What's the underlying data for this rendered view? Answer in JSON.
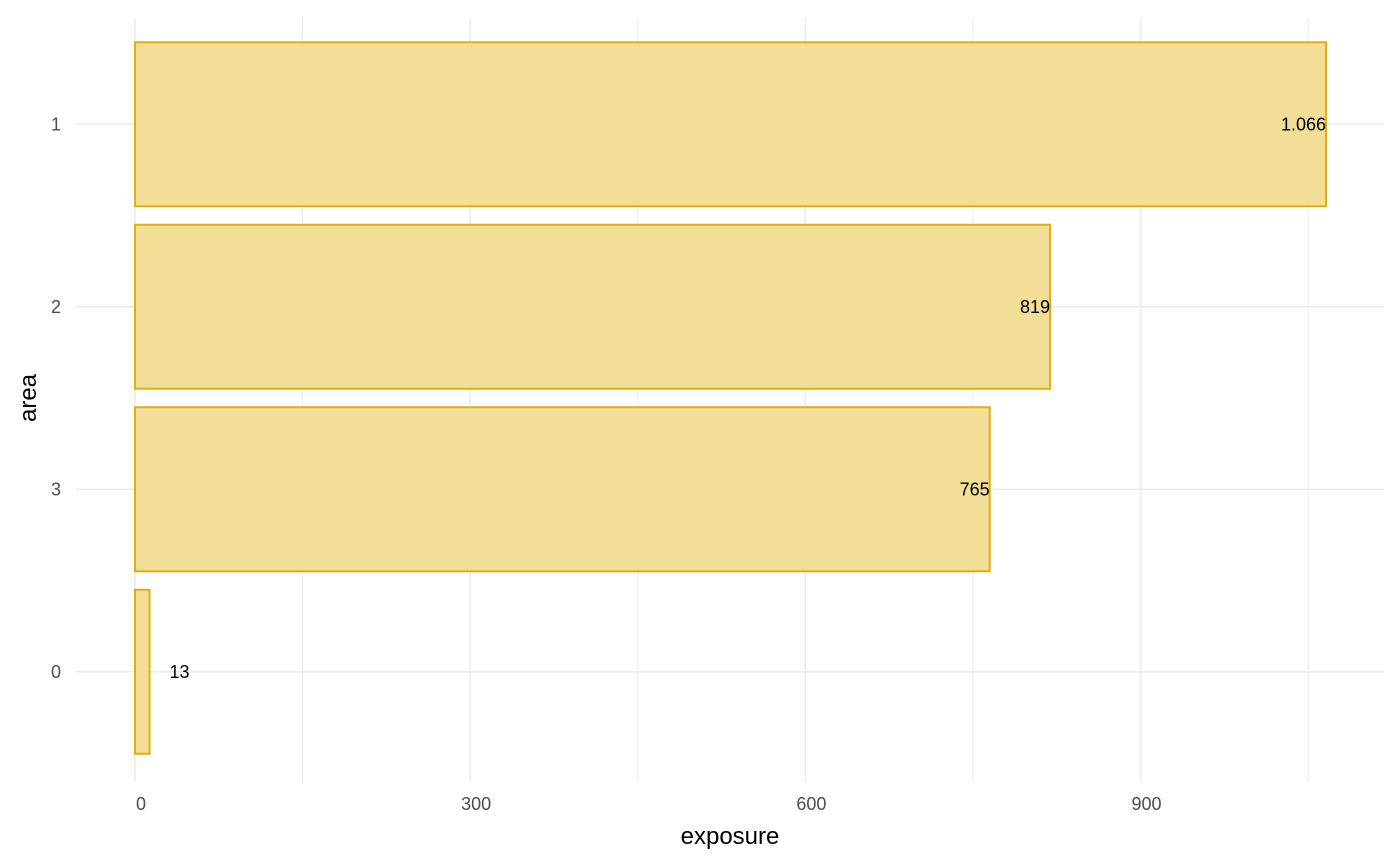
{
  "chart_data": {
    "type": "bar",
    "orientation": "horizontal",
    "categories": [
      "1",
      "2",
      "3",
      "0"
    ],
    "values": [
      1066,
      819,
      765,
      13
    ],
    "data_labels": [
      "1.066",
      "819",
      "765",
      "13"
    ],
    "title": "",
    "xlabel": "exposure",
    "ylabel": "area",
    "xlim": [
      0,
      1066
    ],
    "x_ticks": [
      0,
      300,
      600,
      900
    ],
    "x_tick_labels": [
      "0",
      "300",
      "600",
      "900"
    ],
    "grid": true,
    "legend": "none",
    "bar_fill": "#F3DE98",
    "bar_stroke": "#E2AE14",
    "grid_color": "#EBEBEB",
    "text_color": "#4D4D4D"
  }
}
